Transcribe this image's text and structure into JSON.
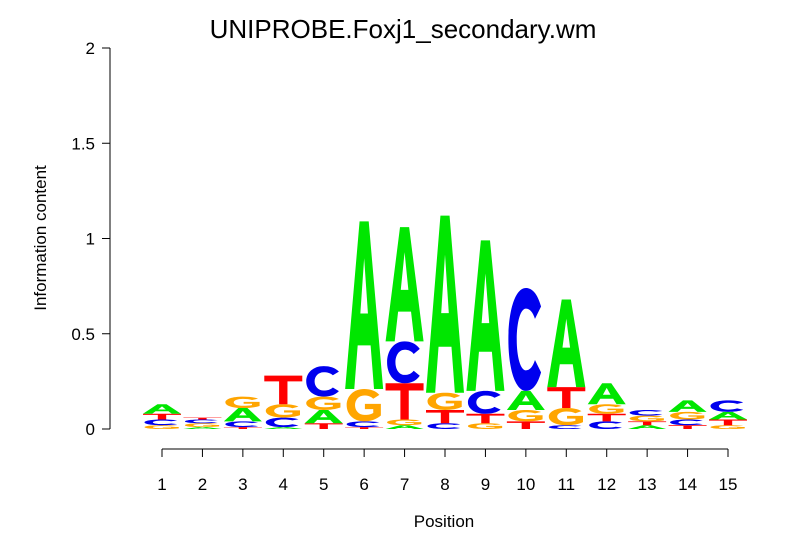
{
  "chart_data": {
    "type": "sequence-logo",
    "title": "UNIPROBE.Foxj1_secondary.wm",
    "xlabel": "Position",
    "ylabel": "Information content",
    "ylim": [
      0,
      2
    ],
    "yticks": [
      "0",
      "0.5",
      "1",
      "1.5",
      "2"
    ],
    "positions": [
      "1",
      "2",
      "3",
      "4",
      "5",
      "6",
      "7",
      "8",
      "9",
      "10",
      "11",
      "12",
      "13",
      "14",
      "15"
    ],
    "colors": {
      "A": "#00e600",
      "C": "#0000ee",
      "G": "#ffa500",
      "T": "#ff0000"
    },
    "stacks": [
      [
        {
          "letter": "G",
          "height": 0.02
        },
        {
          "letter": "C",
          "height": 0.03
        },
        {
          "letter": "T",
          "height": 0.03
        },
        {
          "letter": "A",
          "height": 0.05
        }
      ],
      [
        {
          "letter": "A",
          "height": 0.01
        },
        {
          "letter": "G",
          "height": 0.02
        },
        {
          "letter": "C",
          "height": 0.02
        },
        {
          "letter": "T",
          "height": 0.01
        }
      ],
      [
        {
          "letter": "T",
          "height": 0.01
        },
        {
          "letter": "C",
          "height": 0.03
        },
        {
          "letter": "A",
          "height": 0.07
        },
        {
          "letter": "G",
          "height": 0.06
        }
      ],
      [
        {
          "letter": "A",
          "height": 0.01
        },
        {
          "letter": "C",
          "height": 0.05
        },
        {
          "letter": "G",
          "height": 0.07
        },
        {
          "letter": "T",
          "height": 0.15
        }
      ],
      [
        {
          "letter": "T",
          "height": 0.03
        },
        {
          "letter": "A",
          "height": 0.07
        },
        {
          "letter": "G",
          "height": 0.07
        },
        {
          "letter": "C",
          "height": 0.16
        }
      ],
      [
        {
          "letter": "T",
          "height": 0.01
        },
        {
          "letter": "C",
          "height": 0.03
        },
        {
          "letter": "G",
          "height": 0.17
        },
        {
          "letter": "A",
          "height": 0.88
        }
      ],
      [
        {
          "letter": "A",
          "height": 0.02
        },
        {
          "letter": "G",
          "height": 0.03
        },
        {
          "letter": "T",
          "height": 0.19
        },
        {
          "letter": "C",
          "height": 0.22
        },
        {
          "letter": "A",
          "height": 0.6
        }
      ],
      [
        {
          "letter": "C",
          "height": 0.03
        },
        {
          "letter": "T",
          "height": 0.07
        },
        {
          "letter": "G",
          "height": 0.09
        },
        {
          "letter": "A",
          "height": 0.93
        }
      ],
      [
        {
          "letter": "G",
          "height": 0.03
        },
        {
          "letter": "T",
          "height": 0.05
        },
        {
          "letter": "C",
          "height": 0.12
        },
        {
          "letter": "A",
          "height": 0.79
        }
      ],
      [
        {
          "letter": "T",
          "height": 0.04
        },
        {
          "letter": "G",
          "height": 0.06
        },
        {
          "letter": "A",
          "height": 0.1
        },
        {
          "letter": "C",
          "height": 0.54
        }
      ],
      [
        {
          "letter": "C",
          "height": 0.02
        },
        {
          "letter": "G",
          "height": 0.09
        },
        {
          "letter": "T",
          "height": 0.11
        },
        {
          "letter": "A",
          "height": 0.46
        }
      ],
      [
        {
          "letter": "C",
          "height": 0.04
        },
        {
          "letter": "T",
          "height": 0.04
        },
        {
          "letter": "G",
          "height": 0.05
        },
        {
          "letter": "A",
          "height": 0.11
        }
      ],
      [
        {
          "letter": "A",
          "height": 0.02
        },
        {
          "letter": "T",
          "height": 0.02
        },
        {
          "letter": "G",
          "height": 0.03
        },
        {
          "letter": "C",
          "height": 0.03
        }
      ],
      [
        {
          "letter": "T",
          "height": 0.02
        },
        {
          "letter": "C",
          "height": 0.03
        },
        {
          "letter": "G",
          "height": 0.04
        },
        {
          "letter": "A",
          "height": 0.06
        }
      ],
      [
        {
          "letter": "G",
          "height": 0.02
        },
        {
          "letter": "T",
          "height": 0.03
        },
        {
          "letter": "A",
          "height": 0.04
        },
        {
          "letter": "C",
          "height": 0.06
        }
      ]
    ]
  }
}
